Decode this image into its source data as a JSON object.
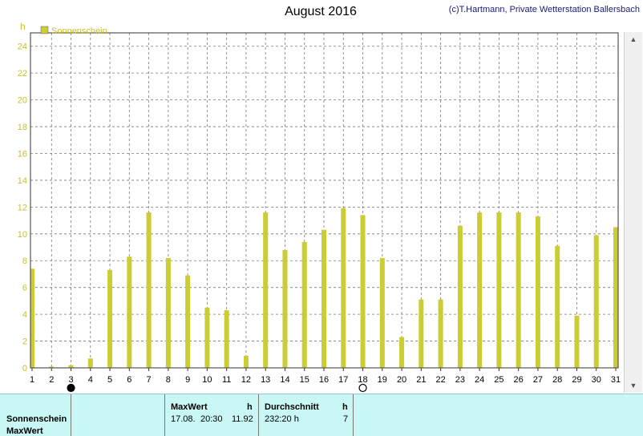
{
  "header": {
    "title": "August 2016",
    "credit": "(c)T.Hartmann, Private Wetterstation Ballersbach"
  },
  "chart_data": {
    "type": "bar",
    "yunit": "h",
    "ylim": [
      0,
      25
    ],
    "yticks": [
      0,
      2,
      4,
      6,
      8,
      10,
      12,
      14,
      16,
      18,
      20,
      22,
      24
    ],
    "categories": [
      "1",
      "2",
      "3",
      "4",
      "5",
      "6",
      "7",
      "8",
      "9",
      "10",
      "11",
      "12",
      "13",
      "14",
      "15",
      "16",
      "17",
      "18",
      "19",
      "20",
      "21",
      "22",
      "23",
      "24",
      "25",
      "26",
      "27",
      "28",
      "29",
      "30",
      "31"
    ],
    "series": [
      {
        "name": "Sonnenschein",
        "color": "#cccc33",
        "values": [
          7.4,
          0.1,
          0.2,
          0.7,
          7.3,
          8.3,
          11.6,
          8.2,
          6.9,
          4.5,
          4.3,
          0.9,
          11.6,
          8.8,
          9.4,
          10.3,
          11.92,
          11.4,
          8.2,
          2.3,
          5.1,
          5.1,
          10.6,
          11.6,
          11.6,
          11.6,
          11.3,
          9.1,
          3.9,
          9.9,
          10.5
        ]
      }
    ],
    "grid": true,
    "legend": "top-left",
    "moon_markers": [
      {
        "day": 3,
        "phase": "new-moon"
      },
      {
        "day": 18,
        "phase": "full-moon"
      }
    ]
  },
  "footer": {
    "row1": "Sonnenschein",
    "row2": "MaxWert",
    "maxwert_label": "MaxWert",
    "maxwert_unit": "h",
    "maxwert_date": "17.08.",
    "maxwert_time": "20:30",
    "maxwert_value": "11.92",
    "avg_label": "Durchschnitt",
    "avg_unit": "h",
    "avg_value": "232:20 h",
    "avg_count": "7"
  }
}
